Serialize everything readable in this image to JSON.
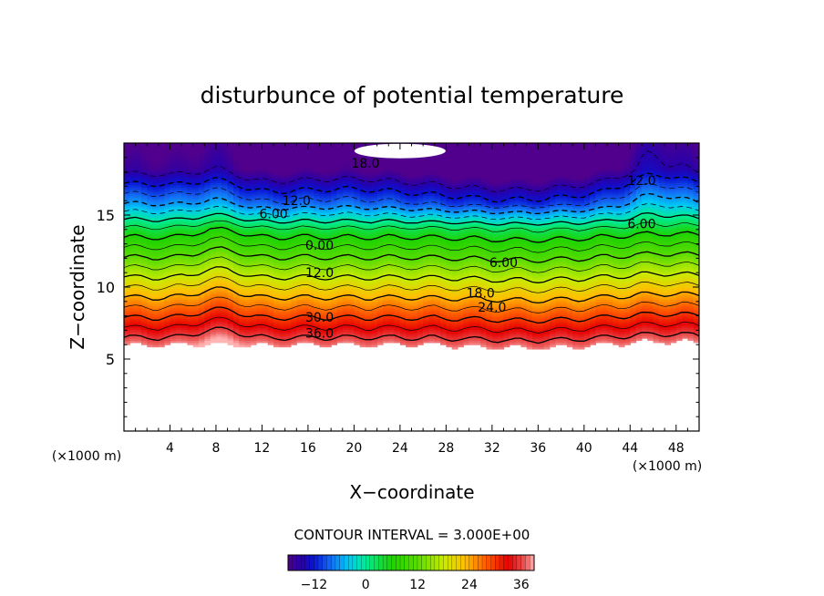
{
  "chart_data": {
    "type": "heatmap",
    "title": "disturbunce of potential temperature",
    "xlabel": "X−coordinate",
    "ylabel": "Z−coordinate",
    "x_unit_left": "(×1000 m)",
    "x_unit_right": "(×1000 m)",
    "xlim": [
      0,
      50
    ],
    "ylim": [
      0,
      20
    ],
    "x_ticks": [
      4,
      8,
      12,
      16,
      20,
      24,
      28,
      32,
      36,
      40,
      44,
      48
    ],
    "x_tick_labels": [
      "4",
      "8",
      "12",
      "16",
      "20",
      "24",
      "28",
      "32",
      "36",
      "40",
      "44",
      "48"
    ],
    "y_ticks": [
      5,
      10,
      15
    ],
    "y_tick_labels": [
      "5",
      "10",
      "15"
    ],
    "contour_interval_text": "CONTOUR INTERVAL = 3.000E+00",
    "contour_interval": 3.0,
    "value_range": [
      -18,
      39
    ],
    "field_bottom_z": 6.0,
    "contour_labels": [
      {
        "text": "18.0",
        "x": 21,
        "z": 18.6
      },
      {
        "text": "12.0",
        "x": 45,
        "z": 17.4
      },
      {
        "text": "12.0",
        "x": 15,
        "z": 16.0
      },
      {
        "text": "6.00",
        "x": 13,
        "z": 15.1
      },
      {
        "text": "6.00",
        "x": 45,
        "z": 14.4
      },
      {
        "text": "0.00",
        "x": 17,
        "z": 12.9
      },
      {
        "text": "6.00",
        "x": 33,
        "z": 11.7
      },
      {
        "text": "12.0",
        "x": 17,
        "z": 11.0
      },
      {
        "text": "18.0",
        "x": 31,
        "z": 9.6
      },
      {
        "text": "24.0",
        "x": 32,
        "z": 8.6
      },
      {
        "text": "30.0",
        "x": 17,
        "z": 7.9
      },
      {
        "text": "36.0",
        "x": 17,
        "z": 6.8
      }
    ],
    "colorbar": {
      "ticks": [
        -12,
        0,
        12,
        24,
        36
      ],
      "tick_labels": [
        "−12",
        "0",
        "12",
        "24",
        "36"
      ],
      "range": [
        -18,
        39
      ]
    }
  }
}
